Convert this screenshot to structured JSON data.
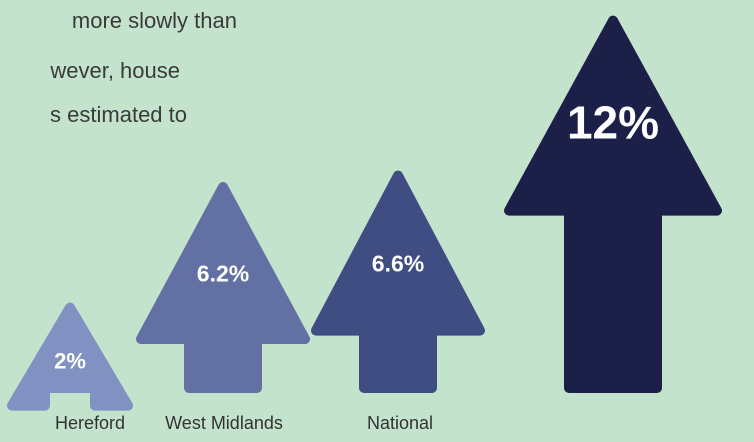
{
  "intro_text": {
    "line1": "more slowly than",
    "line2": "wever, house",
    "line3": "s estimated to"
  },
  "chart_data": {
    "type": "bar",
    "title": "",
    "xlabel": "",
    "ylabel": "",
    "categories": [
      "Hereford",
      "West Midlands",
      "National",
      ""
    ],
    "values": [
      2,
      6.2,
      6.6,
      12
    ],
    "value_labels": [
      "2%",
      "6.2%",
      "6.6%",
      "12%"
    ],
    "unit": "%",
    "colors": [
      "#8191c1",
      "#6370a3",
      "#3f4d82",
      "#1c2048"
    ],
    "background": "#c3e3cd",
    "mark_shape": "upward-arrow"
  }
}
